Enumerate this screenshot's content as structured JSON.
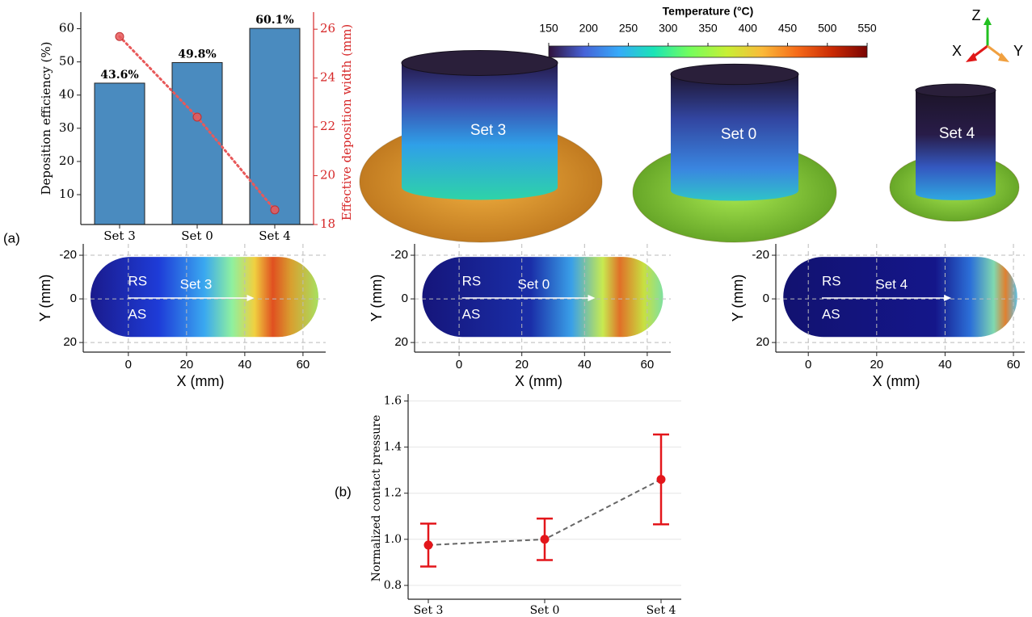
{
  "panel_labels": [
    "(a)",
    "(b)"
  ],
  "chart_data": [
    {
      "type": "bar",
      "categories": [
        "Set 3",
        "Set 0",
        "Set 4"
      ],
      "ylabel": "Deposition efficiency (%)",
      "y2label": "Effective deposition width (mm)",
      "series": [
        {
          "kind": "bar",
          "values": [
            43.6,
            49.8,
            60.1
          ],
          "value_labels": [
            "43.6%",
            "49.8%",
            "60.1%"
          ],
          "color": "#4a8bbf"
        },
        {
          "kind": "line",
          "axis": "y2",
          "values": [
            25.7,
            22.4,
            18.6
          ],
          "color": "#e8595a"
        }
      ],
      "ylim": [
        1,
        65
      ],
      "yticks": [
        10,
        20,
        30,
        40,
        50,
        60
      ],
      "y2lim": [
        18,
        26.7
      ],
      "y2ticks": [
        18,
        20,
        22,
        24,
        26
      ],
      "y2color": "#d62728"
    },
    {
      "type": "colorbar",
      "title": "Temperature (°C)",
      "xlim": [
        150,
        550
      ],
      "xticks": [
        150,
        200,
        250,
        300,
        350,
        400,
        450,
        500,
        550
      ],
      "colormap": "turbo"
    },
    {
      "type": "render",
      "labels": [
        "Set 3",
        "Set 0",
        "Set 4"
      ],
      "axis_labels": [
        "Z",
        "X",
        "Y"
      ]
    },
    {
      "type": "heatmap",
      "title": "Set 3",
      "annotations": [
        "RS",
        "AS"
      ],
      "xlabel": "X (mm)",
      "ylabel": "Y (mm)",
      "xlim": [
        -15.5,
        67.8
      ],
      "ylim": [
        24.4,
        -25.2
      ],
      "xticks": [
        0,
        20,
        40,
        60
      ],
      "yticks": [
        -20,
        0,
        20
      ],
      "grid": true
    },
    {
      "type": "heatmap",
      "title": "Set 0",
      "annotations": [
        "RS",
        "AS"
      ],
      "xlabel": "X (mm)",
      "ylabel": "Y (mm)",
      "xlim": [
        -14.2,
        67.5
      ],
      "ylim": [
        24.4,
        -25.2
      ],
      "xticks": [
        0,
        20,
        40,
        60
      ],
      "yticks": [
        -20,
        0,
        20
      ],
      "grid": true
    },
    {
      "type": "heatmap",
      "title": "Set 4",
      "annotations": [
        "RS",
        "AS"
      ],
      "xlabel": "X (mm)",
      "ylabel": "Y (mm)",
      "xlim": [
        -9.5,
        63.3
      ],
      "ylim": [
        24.4,
        -25.2
      ],
      "xticks": [
        0,
        20,
        40,
        60
      ],
      "yticks": [
        -20,
        0,
        20
      ],
      "grid": true
    },
    {
      "type": "errorbar",
      "categories": [
        "Set 3",
        "Set 0",
        "Set 4"
      ],
      "values": [
        0.975,
        1.0,
        1.26
      ],
      "errors": [
        0.093,
        0.09,
        0.195
      ],
      "ylabel": "Normalized contact pressure",
      "ylim": [
        0.74,
        1.63
      ],
      "yticks": [
        0.8,
        {
          "value": 1,
          "label": "1.0"
        },
        1.2,
        1.4,
        1.6
      ],
      "color": "#e3161b",
      "line_color": "#666666",
      "grid": true
    }
  ]
}
